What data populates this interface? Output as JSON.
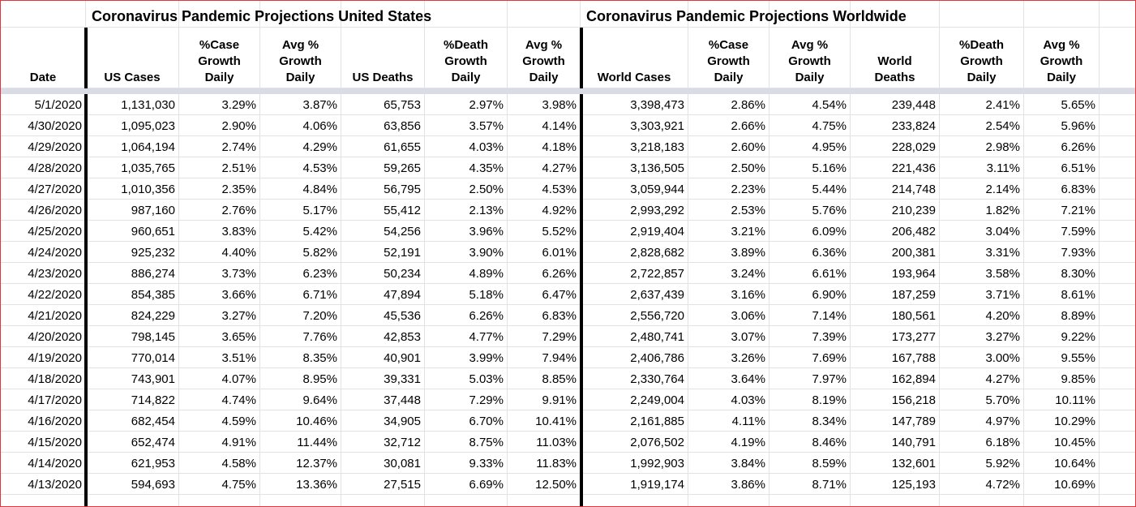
{
  "titles": {
    "us": "Coronavirus Pandemic Projections United States",
    "world": "Coronavirus Pandemic Projections Worldwide"
  },
  "headers": [
    "Date",
    "US Cases",
    "%Case\nGrowth\nDaily",
    "Avg %\nGrowth\nDaily",
    "US Deaths",
    "%Death\nGrowth\nDaily",
    "Avg %\nGrowth\nDaily",
    "World Cases",
    "%Case\nGrowth\nDaily",
    "Avg %\nGrowth\nDaily",
    "World\nDeaths",
    "%Death\nGrowth\nDaily",
    "Avg %\nGrowth\nDaily"
  ],
  "rows": [
    [
      "5/1/2020",
      "1,131,030",
      "3.29%",
      "3.87%",
      "65,753",
      "2.97%",
      "3.98%",
      "3,398,473",
      "2.86%",
      "4.54%",
      "239,448",
      "2.41%",
      "5.65%"
    ],
    [
      "4/30/2020",
      "1,095,023",
      "2.90%",
      "4.06%",
      "63,856",
      "3.57%",
      "4.14%",
      "3,303,921",
      "2.66%",
      "4.75%",
      "233,824",
      "2.54%",
      "5.96%"
    ],
    [
      "4/29/2020",
      "1,064,194",
      "2.74%",
      "4.29%",
      "61,655",
      "4.03%",
      "4.18%",
      "3,218,183",
      "2.60%",
      "4.95%",
      "228,029",
      "2.98%",
      "6.26%"
    ],
    [
      "4/28/2020",
      "1,035,765",
      "2.51%",
      "4.53%",
      "59,265",
      "4.35%",
      "4.27%",
      "3,136,505",
      "2.50%",
      "5.16%",
      "221,436",
      "3.11%",
      "6.51%"
    ],
    [
      "4/27/2020",
      "1,010,356",
      "2.35%",
      "4.84%",
      "56,795",
      "2.50%",
      "4.53%",
      "3,059,944",
      "2.23%",
      "5.44%",
      "214,748",
      "2.14%",
      "6.83%"
    ],
    [
      "4/26/2020",
      "987,160",
      "2.76%",
      "5.17%",
      "55,412",
      "2.13%",
      "4.92%",
      "2,993,292",
      "2.53%",
      "5.76%",
      "210,239",
      "1.82%",
      "7.21%"
    ],
    [
      "4/25/2020",
      "960,651",
      "3.83%",
      "5.42%",
      "54,256",
      "3.96%",
      "5.52%",
      "2,919,404",
      "3.21%",
      "6.09%",
      "206,482",
      "3.04%",
      "7.59%"
    ],
    [
      "4/24/2020",
      "925,232",
      "4.40%",
      "5.82%",
      "52,191",
      "3.90%",
      "6.01%",
      "2,828,682",
      "3.89%",
      "6.36%",
      "200,381",
      "3.31%",
      "7.93%"
    ],
    [
      "4/23/2020",
      "886,274",
      "3.73%",
      "6.23%",
      "50,234",
      "4.89%",
      "6.26%",
      "2,722,857",
      "3.24%",
      "6.61%",
      "193,964",
      "3.58%",
      "8.30%"
    ],
    [
      "4/22/2020",
      "854,385",
      "3.66%",
      "6.71%",
      "47,894",
      "5.18%",
      "6.47%",
      "2,637,439",
      "3.16%",
      "6.90%",
      "187,259",
      "3.71%",
      "8.61%"
    ],
    [
      "4/21/2020",
      "824,229",
      "3.27%",
      "7.20%",
      "45,536",
      "6.26%",
      "6.83%",
      "2,556,720",
      "3.06%",
      "7.14%",
      "180,561",
      "4.20%",
      "8.89%"
    ],
    [
      "4/20/2020",
      "798,145",
      "3.65%",
      "7.76%",
      "42,853",
      "4.77%",
      "7.29%",
      "2,480,741",
      "3.07%",
      "7.39%",
      "173,277",
      "3.27%",
      "9.22%"
    ],
    [
      "4/19/2020",
      "770,014",
      "3.51%",
      "8.35%",
      "40,901",
      "3.99%",
      "7.94%",
      "2,406,786",
      "3.26%",
      "7.69%",
      "167,788",
      "3.00%",
      "9.55%"
    ],
    [
      "4/18/2020",
      "743,901",
      "4.07%",
      "8.95%",
      "39,331",
      "5.03%",
      "8.85%",
      "2,330,764",
      "3.64%",
      "7.97%",
      "162,894",
      "4.27%",
      "9.85%"
    ],
    [
      "4/17/2020",
      "714,822",
      "4.74%",
      "9.64%",
      "37,448",
      "7.29%",
      "9.91%",
      "2,249,004",
      "4.03%",
      "8.19%",
      "156,218",
      "5.70%",
      "10.11%"
    ],
    [
      "4/16/2020",
      "682,454",
      "4.59%",
      "10.46%",
      "34,905",
      "6.70%",
      "10.41%",
      "2,161,885",
      "4.11%",
      "8.34%",
      "147,789",
      "4.97%",
      "10.29%"
    ],
    [
      "4/15/2020",
      "652,474",
      "4.91%",
      "11.44%",
      "32,712",
      "8.75%",
      "11.03%",
      "2,076,502",
      "4.19%",
      "8.46%",
      "140,791",
      "6.18%",
      "10.45%"
    ],
    [
      "4/14/2020",
      "621,953",
      "4.58%",
      "12.37%",
      "30,081",
      "9.33%",
      "11.83%",
      "1,992,903",
      "3.84%",
      "8.59%",
      "132,601",
      "5.92%",
      "10.64%"
    ],
    [
      "4/13/2020",
      "594,693",
      "4.75%",
      "13.36%",
      "27,515",
      "6.69%",
      "12.50%",
      "1,919,174",
      "3.86%",
      "8.71%",
      "125,193",
      "4.72%",
      "10.69%"
    ]
  ]
}
